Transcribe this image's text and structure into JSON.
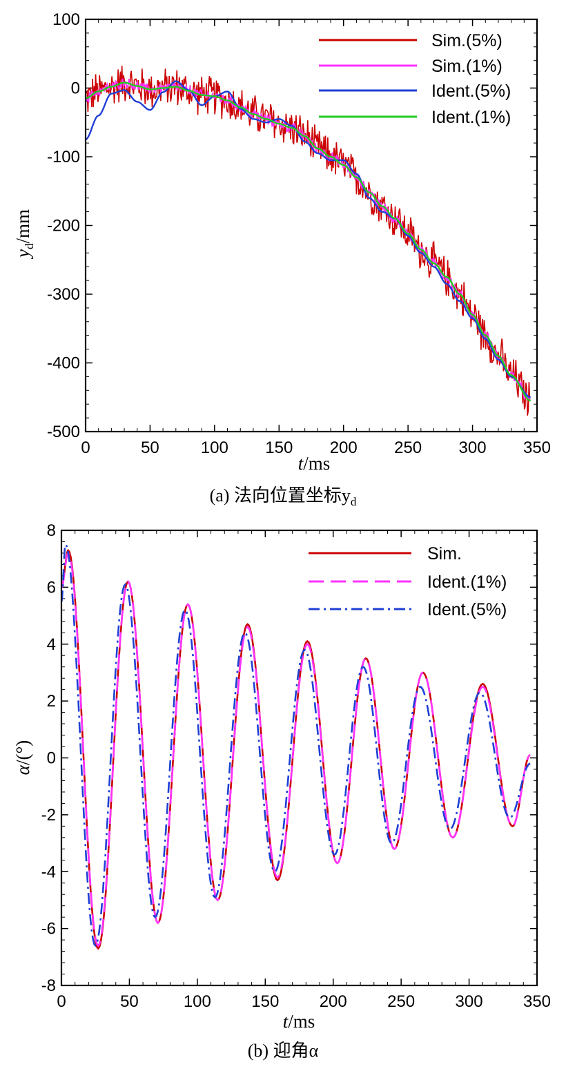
{
  "chart_data": [
    {
      "type": "line",
      "caption": "(a) 法向位置坐标y",
      "caption_sub": "d",
      "xlabel": "t",
      "xlabel_unit": "/ms",
      "ylabel": "y",
      "ylabel_sub": "d",
      "ylabel_unit": "/mm",
      "xlim": [
        0,
        350
      ],
      "ylim": [
        -500,
        100
      ],
      "x_ticks": [
        "0",
        "50",
        "100",
        "150",
        "200",
        "250",
        "300",
        "350"
      ],
      "y_ticks": [
        "100",
        "0",
        "-100",
        "-200",
        "-300",
        "-400",
        "-500"
      ],
      "legend_position": "top-right",
      "series": [
        {
          "name": "Sim.(5%)",
          "color": "#cc0000",
          "style": "solid",
          "noise": 28
        },
        {
          "name": "Sim.(1%)",
          "color": "#ff33ff",
          "style": "solid",
          "noise": 7
        },
        {
          "name": "Ident.(5%)",
          "color": "#1f3fd6",
          "style": "solid",
          "x": [
            0,
            10,
            20,
            30,
            40,
            50,
            60,
            70,
            80,
            90,
            100,
            110,
            120,
            130,
            140,
            150,
            160,
            170,
            180,
            190,
            200,
            210,
            220,
            230,
            240,
            250,
            260,
            270,
            280,
            290,
            300,
            310,
            320,
            330,
            345
          ],
          "values": [
            -75,
            -40,
            -8,
            -3,
            -20,
            -32,
            -6,
            10,
            -3,
            -25,
            -12,
            -5,
            -30,
            -45,
            -50,
            -45,
            -55,
            -78,
            -95,
            -105,
            -105,
            -125,
            -160,
            -180,
            -190,
            -215,
            -240,
            -260,
            -285,
            -310,
            -335,
            -365,
            -395,
            -420,
            -450
          ]
        },
        {
          "name": "Ident.(1%)",
          "color": "#22cc22",
          "style": "solid",
          "x": [
            0,
            10,
            20,
            30,
            40,
            50,
            60,
            70,
            80,
            90,
            100,
            110,
            120,
            130,
            140,
            150,
            160,
            170,
            180,
            190,
            200,
            210,
            220,
            230,
            240,
            250,
            260,
            270,
            280,
            290,
            300,
            310,
            320,
            330,
            345
          ],
          "values": [
            -15,
            -5,
            2,
            8,
            3,
            -2,
            0,
            2,
            -4,
            -10,
            -12,
            -18,
            -28,
            -38,
            -45,
            -52,
            -58,
            -70,
            -88,
            -100,
            -112,
            -130,
            -152,
            -172,
            -190,
            -212,
            -235,
            -255,
            -275,
            -300,
            -330,
            -360,
            -390,
            -418,
            -455
          ]
        }
      ]
    },
    {
      "type": "line",
      "caption": "(b) 迎角α",
      "xlabel": "t",
      "xlabel_unit": "/ms",
      "ylabel": "α",
      "ylabel_unit": "/(°)",
      "xlim": [
        0,
        350
      ],
      "ylim": [
        -8,
        8
      ],
      "x_ticks": [
        "0",
        "50",
        "100",
        "150",
        "200",
        "250",
        "300",
        "350"
      ],
      "y_ticks": [
        "8",
        "6",
        "4",
        "2",
        "0",
        "-2",
        "-4",
        "-6",
        "-8"
      ],
      "legend_position": "top-right",
      "series": [
        {
          "name": "Sim.",
          "color": "#cc0000",
          "style": "solid",
          "x": [
            0,
            5,
            27,
            49,
            71,
            93,
            115,
            137,
            159,
            181,
            203,
            224,
            245,
            266,
            288,
            310,
            332,
            345
          ],
          "values": [
            6.0,
            7.3,
            -6.7,
            6.2,
            -5.8,
            5.4,
            -5.0,
            4.7,
            -4.3,
            4.1,
            -3.7,
            3.5,
            -3.2,
            3.0,
            -2.8,
            2.6,
            -2.4,
            0.1
          ]
        },
        {
          "name": "Ident.(1%)",
          "color": "#ff33ff",
          "style": "dashed",
          "x": [
            0,
            5,
            27,
            49,
            71,
            93,
            115,
            137,
            159,
            181,
            203,
            224,
            245,
            266,
            288,
            310,
            332,
            345
          ],
          "values": [
            6.0,
            7.2,
            -6.6,
            6.2,
            -5.8,
            5.4,
            -5.0,
            4.6,
            -4.2,
            4.0,
            -3.7,
            3.5,
            -3.2,
            3.0,
            -2.8,
            2.5,
            -2.4,
            0.1
          ]
        },
        {
          "name": "Ident.(5%)",
          "color": "#1f3fd6",
          "style": "dashdot",
          "x": [
            0,
            3,
            25,
            47,
            69,
            91,
            113,
            135,
            157,
            179,
            201,
            222,
            243,
            264,
            286,
            308,
            330,
            345
          ],
          "values": [
            5.5,
            7.5,
            -6.6,
            6.1,
            -5.6,
            5.2,
            -4.9,
            4.4,
            -4.0,
            3.8,
            -3.4,
            3.2,
            -3.0,
            2.5,
            -2.5,
            2.3,
            -2.1,
            -0.2
          ]
        }
      ]
    }
  ]
}
